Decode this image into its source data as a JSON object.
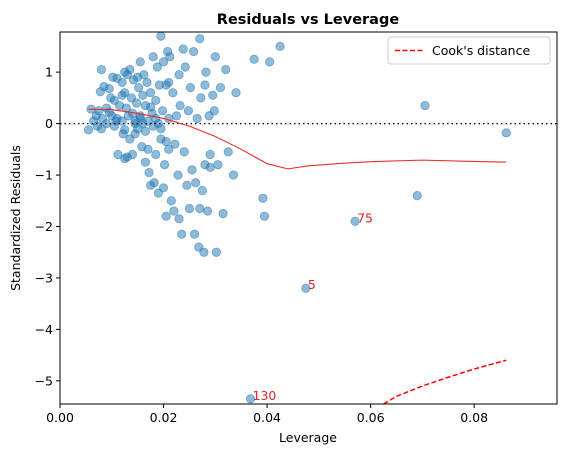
{
  "chart_data": {
    "type": "scatter",
    "title": "Residuals vs Leverage",
    "xlabel": "Leverage",
    "ylabel": "Standardized Residuals",
    "xlim": [
      0.0,
      0.096
    ],
    "ylim": [
      -5.45,
      1.78
    ],
    "xticks": [
      0.0,
      0.02,
      0.04,
      0.06,
      0.08
    ],
    "xtick_labels": [
      "0.00",
      "0.02",
      "0.04",
      "0.06",
      "0.08"
    ],
    "yticks": [
      -5,
      -4,
      -3,
      -2,
      -1,
      0,
      1
    ],
    "ytick_labels": [
      "−5",
      "−4",
      "−3",
      "−2",
      "−1",
      "0",
      "1"
    ],
    "grid": false,
    "legend": {
      "placement": "top-right",
      "entries": [
        "Cook's distance"
      ]
    },
    "colors": {
      "points": "#1f77b4",
      "cooks": "#ff0000",
      "lowess": "#e8302a",
      "annotation": "#d62728",
      "zero_line": "#000000"
    },
    "points": [
      [
        0.0055,
        -0.12
      ],
      [
        0.006,
        0.28
      ],
      [
        0.0065,
        0.05
      ],
      [
        0.007,
        0.15
      ],
      [
        0.0072,
        -0.05
      ],
      [
        0.0075,
        0.25
      ],
      [
        0.0078,
        0.62
      ],
      [
        0.008,
        1.05
      ],
      [
        0.008,
        -0.1
      ],
      [
        0.0082,
        0.1
      ],
      [
        0.0085,
        0.72
      ],
      [
        0.009,
        0.3
      ],
      [
        0.009,
        0.0
      ],
      [
        0.0095,
        0.68
      ],
      [
        0.0098,
        0.5
      ],
      [
        0.01,
        0.15
      ],
      [
        0.0102,
        0.9
      ],
      [
        0.0105,
        -0.05
      ],
      [
        0.0105,
        0.45
      ],
      [
        0.011,
        0.88
      ],
      [
        0.011,
        0.1
      ],
      [
        0.0112,
        -0.6
      ],
      [
        0.0115,
        0.35
      ],
      [
        0.012,
        0.8
      ],
      [
        0.012,
        0.05
      ],
      [
        0.0122,
        -0.2
      ],
      [
        0.0125,
        0.6
      ],
      [
        0.0125,
        -0.12
      ],
      [
        0.0128,
        0.3
      ],
      [
        0.013,
        0.95
      ],
      [
        0.013,
        -0.65
      ],
      [
        0.0132,
        0.15
      ],
      [
        0.0135,
        1.05
      ],
      [
        0.0135,
        -0.3
      ],
      [
        0.0138,
        0.5
      ],
      [
        0.014,
        0.2
      ],
      [
        0.014,
        -0.6
      ],
      [
        0.0142,
        0.85
      ],
      [
        0.0145,
        0.0
      ],
      [
        0.0145,
        -0.2
      ],
      [
        0.0148,
        0.4
      ],
      [
        0.015,
        0.9
      ],
      [
        0.015,
        -0.1
      ],
      [
        0.0152,
        0.7
      ],
      [
        0.0155,
        1.2
      ],
      [
        0.0155,
        0.1
      ],
      [
        0.0158,
        -0.45
      ],
      [
        0.016,
        0.55
      ],
      [
        0.016,
        0.0
      ],
      [
        0.0162,
        0.95
      ],
      [
        0.0165,
        -0.15
      ],
      [
        0.0165,
        0.35
      ],
      [
        0.0168,
        0.8
      ],
      [
        0.017,
        0.05
      ],
      [
        0.017,
        -0.5
      ],
      [
        0.0172,
        -0.95
      ],
      [
        0.0175,
        0.6
      ],
      [
        0.0175,
        -1.2
      ],
      [
        0.0178,
        0.2
      ],
      [
        0.018,
        1.3
      ],
      [
        0.018,
        -0.05
      ],
      [
        0.0182,
        -1.15
      ],
      [
        0.0185,
        0.45
      ],
      [
        0.0185,
        -0.6
      ],
      [
        0.0188,
        1.1
      ],
      [
        0.019,
        0.0
      ],
      [
        0.019,
        -1.35
      ],
      [
        0.0192,
        0.75
      ],
      [
        0.0195,
        1.7
      ],
      [
        0.0195,
        -0.3
      ],
      [
        0.0198,
        0.25
      ],
      [
        0.02,
        1.2
      ],
      [
        0.02,
        -1.25
      ],
      [
        0.0202,
        -0.8
      ],
      [
        0.0205,
        0.75
      ],
      [
        0.0205,
        -1.8
      ],
      [
        0.0208,
        1.4
      ],
      [
        0.021,
        0.1
      ],
      [
        0.021,
        -0.5
      ],
      [
        0.0212,
        1.3
      ],
      [
        0.0215,
        -1.5
      ],
      [
        0.0218,
        0.6
      ],
      [
        0.022,
        -1.7
      ],
      [
        0.0222,
        -0.4
      ],
      [
        0.0225,
        0.15
      ],
      [
        0.0228,
        -1.0
      ],
      [
        0.023,
        0.95
      ],
      [
        0.023,
        -1.85
      ],
      [
        0.0232,
        0.35
      ],
      [
        0.0235,
        -2.15
      ],
      [
        0.0238,
        1.45
      ],
      [
        0.024,
        -0.55
      ],
      [
        0.0242,
        1.1
      ],
      [
        0.0245,
        -1.2
      ],
      [
        0.0248,
        0.25
      ],
      [
        0.025,
        -1.65
      ],
      [
        0.0252,
        0.7
      ],
      [
        0.0255,
        -0.9
      ],
      [
        0.0258,
        1.4
      ],
      [
        0.026,
        -2.15
      ],
      [
        0.0262,
        -1.15
      ],
      [
        0.0265,
        0.1
      ],
      [
        0.0268,
        -2.4
      ],
      [
        0.027,
        1.65
      ],
      [
        0.027,
        -1.65
      ],
      [
        0.0272,
        0.5
      ],
      [
        0.0275,
        -1.3
      ],
      [
        0.0278,
        -2.5
      ],
      [
        0.028,
        0.75
      ],
      [
        0.028,
        -0.8
      ],
      [
        0.0282,
        1.0
      ],
      [
        0.0285,
        -1.7
      ],
      [
        0.0288,
        0.15
      ],
      [
        0.029,
        -0.6
      ],
      [
        0.029,
        -0.85
      ],
      [
        0.0295,
        0.55
      ],
      [
        0.0298,
        0.25
      ],
      [
        0.03,
        1.3
      ],
      [
        0.0302,
        -2.5
      ],
      [
        0.0305,
        -0.8
      ],
      [
        0.031,
        0.7
      ],
      [
        0.0315,
        -1.75
      ],
      [
        0.032,
        1.05
      ],
      [
        0.0325,
        -0.55
      ],
      [
        0.034,
        0.6
      ],
      [
        0.0335,
        -1.0
      ],
      [
        0.0375,
        1.25
      ],
      [
        0.0392,
        -1.45
      ],
      [
        0.0395,
        -1.8
      ],
      [
        0.0405,
        1.2
      ],
      [
        0.0425,
        1.5
      ],
      [
        0.0368,
        -5.35
      ],
      [
        0.0475,
        -3.2
      ],
      [
        0.057,
        -1.9
      ],
      [
        0.069,
        -1.4
      ],
      [
        0.0705,
        0.35
      ],
      [
        0.0862,
        -0.18
      ],
      [
        0.0125,
        -0.68
      ],
      [
        0.0108,
        0.05
      ],
      [
        0.0095,
        0.22
      ],
      [
        0.0175,
        0.32
      ],
      [
        0.0195,
        -0.1
      ],
      [
        0.0155,
        0.15
      ],
      [
        0.0145,
        0.05
      ],
      [
        0.0185,
        0.1
      ],
      [
        0.021,
        0.8
      ],
      [
        0.0165,
        -0.75
      ],
      [
        0.0205,
        -0.35
      ],
      [
        0.0125,
        1.0
      ],
      [
        0.012,
        0.55
      ]
    ],
    "annotations": [
      {
        "label": "75",
        "x": 0.057,
        "y": -1.9
      },
      {
        "label": "5",
        "x": 0.0475,
        "y": -3.2
      },
      {
        "label": "130",
        "x": 0.0368,
        "y": -5.35
      }
    ],
    "lowess": [
      [
        0.0055,
        0.28
      ],
      [
        0.01,
        0.27
      ],
      [
        0.015,
        0.2
      ],
      [
        0.02,
        0.1
      ],
      [
        0.025,
        -0.05
      ],
      [
        0.03,
        -0.25
      ],
      [
        0.035,
        -0.5
      ],
      [
        0.04,
        -0.78
      ],
      [
        0.044,
        -0.88
      ],
      [
        0.048,
        -0.82
      ],
      [
        0.055,
        -0.77
      ],
      [
        0.06,
        -0.74
      ],
      [
        0.07,
        -0.71
      ],
      [
        0.078,
        -0.73
      ],
      [
        0.0862,
        -0.75
      ]
    ],
    "cooks_distance": [
      [
        0.0625,
        -5.45
      ],
      [
        0.065,
        -5.3
      ],
      [
        0.07,
        -5.1
      ],
      [
        0.075,
        -4.93
      ],
      [
        0.08,
        -4.77
      ],
      [
        0.0862,
        -4.6
      ]
    ]
  }
}
